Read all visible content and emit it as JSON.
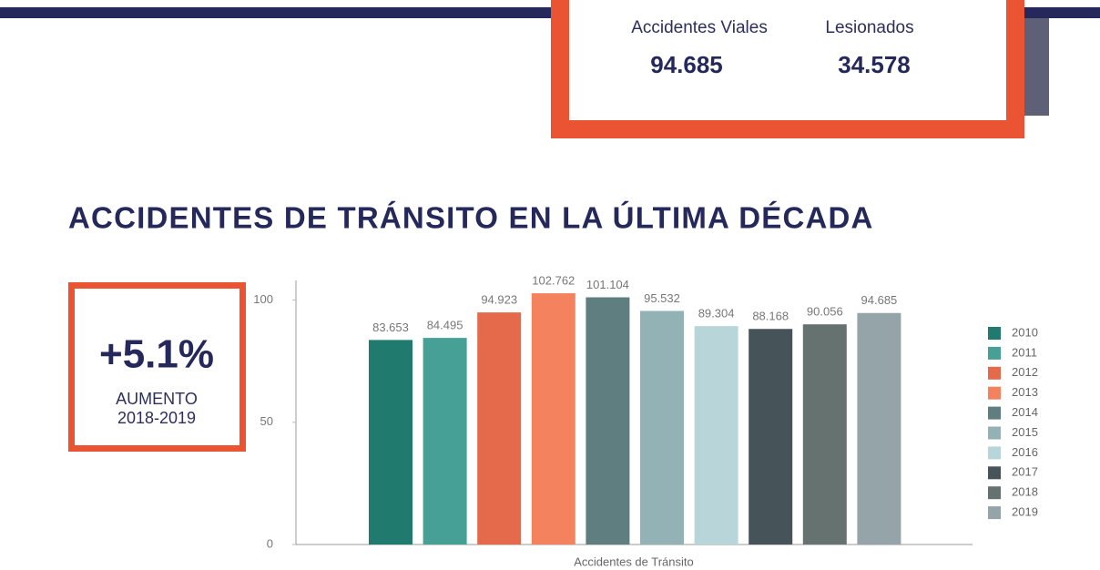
{
  "header": {
    "stats": [
      {
        "label": "Accidentes Viales",
        "value": "94.685"
      },
      {
        "label": "Lesionados",
        "value": "34.578"
      }
    ]
  },
  "highlight": {
    "value": "+5.1%",
    "label": "AUMENTO",
    "period": "2018-2019"
  },
  "chart_data": {
    "type": "bar",
    "title": "ACCIDENTES DE TRÁNSITO EN LA ÚLTIMA DÉCADA",
    "categories": [
      "Accidentes de Tránsito"
    ],
    "series": [
      {
        "name": "2010",
        "color": "#217a6e",
        "values": [
          83.653
        ]
      },
      {
        "name": "2011",
        "color": "#46a096",
        "values": [
          84.495
        ]
      },
      {
        "name": "2012",
        "color": "#e5694b",
        "values": [
          94.923
        ]
      },
      {
        "name": "2013",
        "color": "#f5825f",
        "values": [
          102.762
        ]
      },
      {
        "name": "2014",
        "color": "#5f7e80",
        "values": [
          101.104
        ]
      },
      {
        "name": "2015",
        "color": "#93b2b6",
        "values": [
          95.532
        ]
      },
      {
        "name": "2016",
        "color": "#b8d6da",
        "values": [
          89.304
        ]
      },
      {
        "name": "2017",
        "color": "#46545a",
        "values": [
          88.168
        ]
      },
      {
        "name": "2018",
        "color": "#65726f",
        "values": [
          90.056
        ]
      },
      {
        "name": "2019",
        "color": "#95a4a8",
        "values": [
          94.685
        ]
      }
    ],
    "ylim": [
      0,
      108
    ],
    "yticks": [
      0,
      50,
      100
    ],
    "legend": "right"
  }
}
